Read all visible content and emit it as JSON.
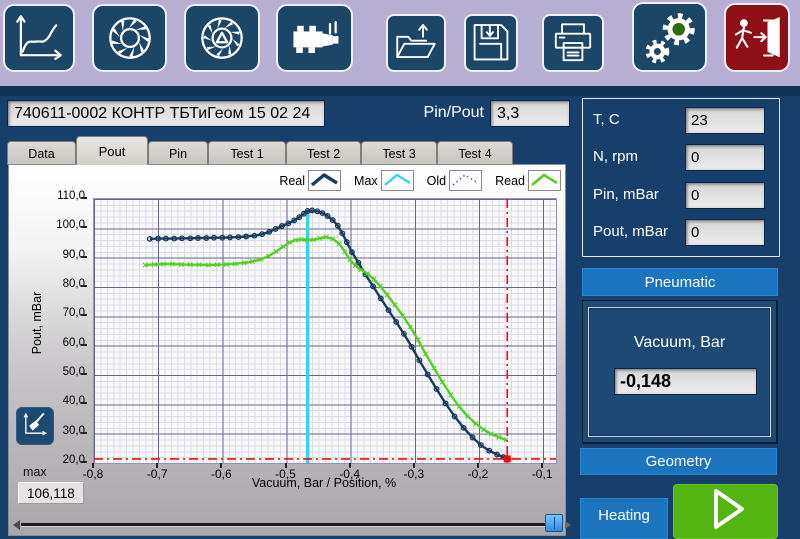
{
  "toolbar": {
    "icons": [
      "performance-curve-icon",
      "impeller-icon",
      "impeller-geometry-icon",
      "engine-icon",
      "open-file-icon",
      "save-icon",
      "print-icon",
      "settings-gears-icon",
      "exit-icon"
    ],
    "settings_dot_color": "#2e6b10",
    "exit_button_color": "#8e1016"
  },
  "header": {
    "batch_id": "740611-0002 КОНТР ТБТиГеом 15 02 24",
    "pin_pout_label": "Pin/Pout",
    "pin_pout_value": "3,3"
  },
  "tabs": {
    "items": [
      "Data",
      "Pout",
      "Pin",
      "Test 1",
      "Test 2",
      "Test 3",
      "Test 4"
    ],
    "active": "Pout"
  },
  "readouts": {
    "rows": [
      {
        "label": "T, C",
        "value": "23"
      },
      {
        "label": "N, rpm",
        "value": "0"
      },
      {
        "label": "Pin, mBar",
        "value": "0"
      },
      {
        "label": "Pout, mBar",
        "value": "0"
      }
    ]
  },
  "controls": {
    "pneumatic_label": "Pneumatic",
    "vacuum_label": "Vacuum, Bar",
    "vacuum_value": "-0,148",
    "geometry_label": "Geometry",
    "heating_label": "Heating",
    "play_color": "#54b512",
    "button_color": "#1b74bd"
  },
  "chart": {
    "max_caption": "max",
    "max_value": "106,118"
  },
  "chart_data": {
    "type": "line",
    "title": "",
    "xlabel": "Vacuum, Bar / Position, %",
    "ylabel": "Pout, mBar",
    "xlim": [
      -0.8,
      -0.08
    ],
    "ylim": [
      20,
      110
    ],
    "grid": true,
    "legend_position": "top-right",
    "x_ticks": [
      {
        "v": -0.8,
        "label": "-0,8"
      },
      {
        "v": -0.7,
        "label": "-0,7"
      },
      {
        "v": -0.6,
        "label": "-0,6"
      },
      {
        "v": -0.5,
        "label": "-0,5"
      },
      {
        "v": -0.4,
        "label": "-0,4"
      },
      {
        "v": -0.3,
        "label": "-0,3"
      },
      {
        "v": -0.2,
        "label": "-0,2"
      },
      {
        "v": -0.1,
        "label": "-0,1"
      }
    ],
    "y_ticks": [
      {
        "v": 110,
        "label": "110,0"
      },
      {
        "v": 100,
        "label": "100,0"
      },
      {
        "v": 90,
        "label": "90,0"
      },
      {
        "v": 80,
        "label": "80,0"
      },
      {
        "v": 70,
        "label": "70,0"
      },
      {
        "v": 60,
        "label": "60,0"
      },
      {
        "v": 50,
        "label": "50,0"
      },
      {
        "v": 40,
        "label": "40,0"
      },
      {
        "v": 30,
        "label": "30,0"
      },
      {
        "v": 20,
        "label": "20,0"
      }
    ],
    "legend": [
      {
        "name": "Real",
        "color": "#1a3a5f",
        "style": "solid-thick-circles"
      },
      {
        "name": "Max",
        "color": "#32d5f0",
        "style": "solid"
      },
      {
        "name": "Old",
        "color": "#3f63c8",
        "style": "dotted"
      },
      {
        "name": "Read",
        "color": "#55cf1e",
        "style": "solid-x"
      }
    ],
    "series": [
      {
        "name": "Real",
        "color": "#1a3a5f",
        "marker": "circle",
        "points": [
          [
            -0.713,
            96.4
          ],
          [
            -0.7,
            96.5
          ],
          [
            -0.688,
            96.5
          ],
          [
            -0.675,
            96.5
          ],
          [
            -0.663,
            96.6
          ],
          [
            -0.65,
            96.6
          ],
          [
            -0.638,
            96.7
          ],
          [
            -0.625,
            96.7
          ],
          [
            -0.613,
            96.8
          ],
          [
            -0.6,
            96.8
          ],
          [
            -0.588,
            96.9
          ],
          [
            -0.575,
            97.0
          ],
          [
            -0.563,
            97.2
          ],
          [
            -0.55,
            97.5
          ],
          [
            -0.538,
            98.0
          ],
          [
            -0.527,
            98.8
          ],
          [
            -0.517,
            99.8
          ],
          [
            -0.507,
            100.8
          ],
          [
            -0.497,
            101.7
          ],
          [
            -0.488,
            102.7
          ],
          [
            -0.48,
            103.8
          ],
          [
            -0.473,
            105.0
          ],
          [
            -0.467,
            105.9
          ],
          [
            -0.46,
            106.1
          ],
          [
            -0.452,
            105.8
          ],
          [
            -0.444,
            105.2
          ],
          [
            -0.436,
            104.2
          ],
          [
            -0.428,
            102.8
          ],
          [
            -0.42,
            100.9
          ],
          [
            -0.413,
            98.3
          ],
          [
            -0.406,
            95.3
          ],
          [
            -0.398,
            91.9
          ],
          [
            -0.388,
            88.3
          ],
          [
            -0.377,
            84.3
          ],
          [
            -0.365,
            80.2
          ],
          [
            -0.353,
            76.1
          ],
          [
            -0.341,
            72.1
          ],
          [
            -0.329,
            68.1
          ],
          [
            -0.317,
            64.0
          ],
          [
            -0.305,
            59.6
          ],
          [
            -0.293,
            55.0
          ],
          [
            -0.28,
            50.2
          ],
          [
            -0.266,
            45.2
          ],
          [
            -0.252,
            40.3
          ],
          [
            -0.238,
            35.9
          ],
          [
            -0.224,
            32.0
          ],
          [
            -0.21,
            28.7
          ],
          [
            -0.197,
            26.1
          ],
          [
            -0.184,
            24.2
          ],
          [
            -0.172,
            22.9
          ],
          [
            -0.162,
            22.0
          ],
          [
            -0.155,
            21.4
          ]
        ]
      },
      {
        "name": "Read",
        "color": "#55cf1e",
        "marker": "x",
        "points": [
          [
            -0.72,
            87.5
          ],
          [
            -0.706,
            87.7
          ],
          [
            -0.692,
            87.8
          ],
          [
            -0.678,
            87.8
          ],
          [
            -0.664,
            87.7
          ],
          [
            -0.65,
            87.6
          ],
          [
            -0.636,
            87.6
          ],
          [
            -0.622,
            87.5
          ],
          [
            -0.608,
            87.6
          ],
          [
            -0.594,
            87.7
          ],
          [
            -0.58,
            87.9
          ],
          [
            -0.566,
            88.2
          ],
          [
            -0.553,
            88.7
          ],
          [
            -0.54,
            89.4
          ],
          [
            -0.528,
            90.5
          ],
          [
            -0.516,
            92.1
          ],
          [
            -0.505,
            93.8
          ],
          [
            -0.495,
            95.2
          ],
          [
            -0.486,
            96.0
          ],
          [
            -0.477,
            96.2
          ],
          [
            -0.468,
            96.0
          ],
          [
            -0.458,
            96.1
          ],
          [
            -0.448,
            96.6
          ],
          [
            -0.438,
            97.0
          ],
          [
            -0.428,
            96.4
          ],
          [
            -0.418,
            94.8
          ],
          [
            -0.409,
            92.0
          ],
          [
            -0.401,
            89.3
          ],
          [
            -0.393,
            87.3
          ],
          [
            -0.384,
            85.9
          ],
          [
            -0.374,
            84.5
          ],
          [
            -0.364,
            82.7
          ],
          [
            -0.354,
            80.3
          ],
          [
            -0.343,
            77.3
          ],
          [
            -0.331,
            73.9
          ],
          [
            -0.319,
            70.3
          ],
          [
            -0.307,
            66.4
          ],
          [
            -0.295,
            62.0
          ],
          [
            -0.283,
            57.2
          ],
          [
            -0.27,
            52.3
          ],
          [
            -0.257,
            47.6
          ],
          [
            -0.244,
            43.2
          ],
          [
            -0.231,
            39.3
          ],
          [
            -0.218,
            36.0
          ],
          [
            -0.205,
            33.4
          ],
          [
            -0.193,
            31.4
          ],
          [
            -0.181,
            29.9
          ],
          [
            -0.169,
            28.8
          ],
          [
            -0.158,
            27.9
          ]
        ]
      }
    ],
    "max_line": {
      "name": "Max",
      "color": "#32d5f0",
      "x": -0.467,
      "y_from": 20,
      "y_to": 105.6
    },
    "cursor": {
      "color": "#e31212",
      "x": -0.156,
      "y": 21.4
    }
  }
}
